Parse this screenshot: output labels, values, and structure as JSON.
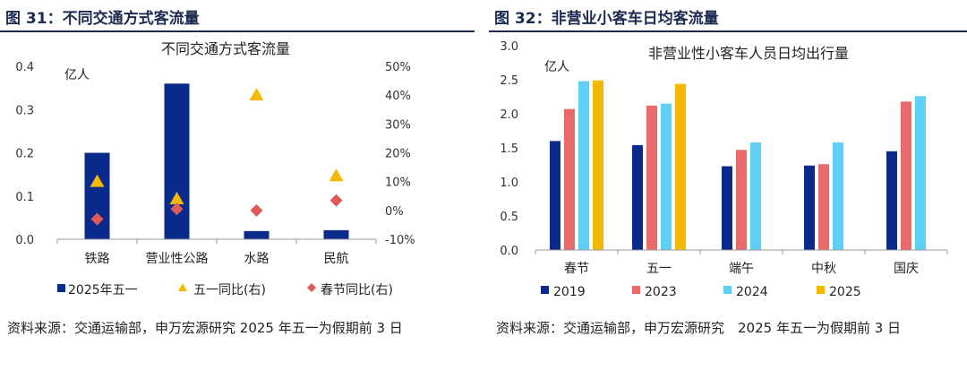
{
  "figures": [
    {
      "heading": "图 31：不同交通方式客流量",
      "source": "资料来源：交通运输部，申万宏源研究 2025 年五一为假期前 3 日"
    },
    {
      "heading": "图 32：非营业小客车日均客流量",
      "source": "资料来源：交通运输部，申万宏源研究　2025 年五一为假期前 3 日"
    }
  ],
  "chart_data": [
    {
      "type": "bar",
      "title": "不同交通方式客流量",
      "ylabel": "亿人",
      "categories": [
        "铁路",
        "营业性公路",
        "水路",
        "民航"
      ],
      "ylim": [
        0,
        0.4
      ],
      "y_ticks": [
        "0.0",
        "0.1",
        "0.2",
        "0.3",
        "0.4"
      ],
      "y2lim": [
        -10,
        50
      ],
      "y2_ticks": [
        "-10%",
        "0%",
        "10%",
        "20%",
        "30%",
        "40%",
        "50%"
      ],
      "series": [
        {
          "name": "2025年五一",
          "kind": "bar",
          "axis": "left",
          "color": "#0a2a8c",
          "values": [
            0.2,
            0.36,
            0.019,
            0.021
          ]
        },
        {
          "name": "五一同比(右)",
          "kind": "marker-triangle",
          "axis": "right",
          "color": "#f5b800",
          "values": [
            10,
            4,
            40,
            12
          ]
        },
        {
          "name": "春节同比(右)",
          "kind": "marker-diamond",
          "axis": "right",
          "color": "#e05a5a",
          "values": [
            -3,
            0.5,
            0,
            3.5
          ]
        }
      ],
      "legend": "bottom",
      "grid": false
    },
    {
      "type": "bar",
      "title": "非营业性小客车人员日均出行量",
      "ylabel": "亿人",
      "categories": [
        "春节",
        "五一",
        "端午",
        "中秋",
        "国庆"
      ],
      "ylim": [
        0,
        3.0
      ],
      "y_ticks": [
        "0.0",
        "0.5",
        "1.0",
        "1.5",
        "2.0",
        "2.5",
        "3.0"
      ],
      "series": [
        {
          "name": "2019",
          "color": "#0a2a8c",
          "values": [
            1.6,
            1.54,
            1.23,
            1.24,
            1.45
          ]
        },
        {
          "name": "2023",
          "color": "#e86a6a",
          "values": [
            2.07,
            2.12,
            1.47,
            1.26,
            2.18
          ]
        },
        {
          "name": "2024",
          "color": "#5fd0f5",
          "values": [
            2.48,
            2.15,
            1.58,
            1.58,
            2.26
          ]
        },
        {
          "name": "2025",
          "color": "#f5b800",
          "values": [
            2.49,
            2.44,
            null,
            null,
            null
          ]
        }
      ],
      "legend": "bottom",
      "grid": false
    }
  ]
}
